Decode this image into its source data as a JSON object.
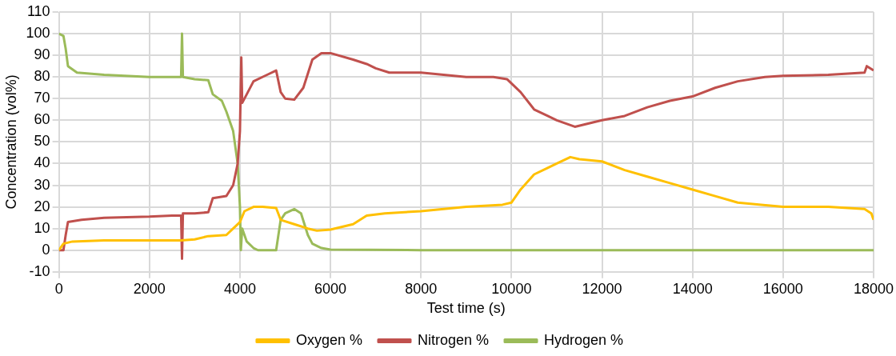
{
  "chart_data": {
    "type": "line",
    "xlabel": "Test time (s)",
    "ylabel": "Concentration (vol%)",
    "xlim": [
      0,
      18000
    ],
    "xticks": [
      0,
      2000,
      4000,
      6000,
      8000,
      10000,
      12000,
      14000,
      16000,
      18000
    ],
    "ylim": [
      -10,
      110
    ],
    "yticks": [
      -10,
      0,
      10,
      20,
      30,
      40,
      50,
      60,
      70,
      80,
      90,
      100,
      110
    ],
    "grid": true,
    "legend": "bottom",
    "marker": "none",
    "line_style": "solid",
    "series": [
      {
        "name": "Oxygen %",
        "color": "#ffc000",
        "x": [
          0,
          100,
          300,
          1000,
          2000,
          2700,
          3000,
          3300,
          3700,
          3850,
          4000,
          4100,
          4300,
          4500,
          4800,
          4900,
          5200,
          5500,
          5700,
          6000,
          6500,
          6800,
          7200,
          8000,
          9000,
          9800,
          10000,
          10200,
          10500,
          10800,
          11000,
          11300,
          11500,
          12000,
          12500,
          13000,
          13500,
          14000,
          14500,
          15000,
          16000,
          17000,
          17800,
          17950,
          18000
        ],
        "values": [
          0,
          3,
          4,
          4.5,
          4.5,
          4.5,
          5,
          6.5,
          7,
          10,
          13,
          18,
          20,
          20,
          19.5,
          14,
          12,
          10,
          9,
          9.5,
          12,
          16,
          17,
          18,
          20,
          21,
          22,
          28,
          35,
          38,
          40,
          43,
          42,
          41,
          37,
          34,
          31,
          28,
          25,
          22,
          20,
          20,
          19,
          17,
          14
        ]
      },
      {
        "name": "Nitrogen %",
        "color": "#c0504d",
        "x": [
          0,
          100,
          150,
          200,
          500,
          1000,
          2000,
          2500,
          2700,
          2720,
          2740,
          3000,
          3300,
          3400,
          3700,
          3850,
          3950,
          4000,
          4030,
          4050,
          4150,
          4300,
          4600,
          4800,
          4900,
          5000,
          5200,
          5400,
          5600,
          5800,
          6000,
          6500,
          6800,
          7000,
          7300,
          8000,
          9000,
          9600,
          9900,
          10200,
          10500,
          10800,
          11000,
          11400,
          11600,
          12000,
          12500,
          13000,
          13500,
          14000,
          14500,
          15000,
          15600,
          16000,
          17000,
          17800,
          17850,
          18000
        ],
        "values": [
          0,
          0,
          7,
          13,
          14,
          15,
          15.5,
          16,
          16,
          -4,
          17,
          17,
          17.5,
          24,
          25,
          30,
          40,
          55,
          89,
          68,
          72,
          78,
          81,
          83,
          73,
          70,
          69.5,
          75,
          88,
          91,
          91,
          88,
          86,
          84,
          82,
          82,
          80,
          80,
          79,
          73,
          65,
          62,
          60,
          57,
          58,
          60,
          62,
          66,
          69,
          71,
          75,
          78,
          80,
          80.5,
          81,
          82,
          85,
          83
        ]
      },
      {
        "name": "Hydrogen %",
        "color": "#9bbb59",
        "x": [
          0,
          100,
          150,
          200,
          400,
          1000,
          2000,
          2700,
          2720,
          2740,
          3000,
          3300,
          3400,
          3600,
          3700,
          3850,
          3950,
          4000,
          4020,
          4050,
          4150,
          4300,
          4400,
          4800,
          4900,
          5000,
          5200,
          5350,
          5500,
          5600,
          5800,
          6000,
          8000,
          18000
        ],
        "values": [
          100,
          99,
          93,
          85,
          82,
          81,
          80,
          80,
          100,
          80,
          79,
          78.5,
          72,
          69,
          64,
          55,
          40,
          20,
          0,
          10,
          4,
          1,
          0,
          0,
          14,
          17,
          19,
          17,
          7,
          3,
          1,
          0.3,
          0,
          0
        ]
      }
    ]
  }
}
